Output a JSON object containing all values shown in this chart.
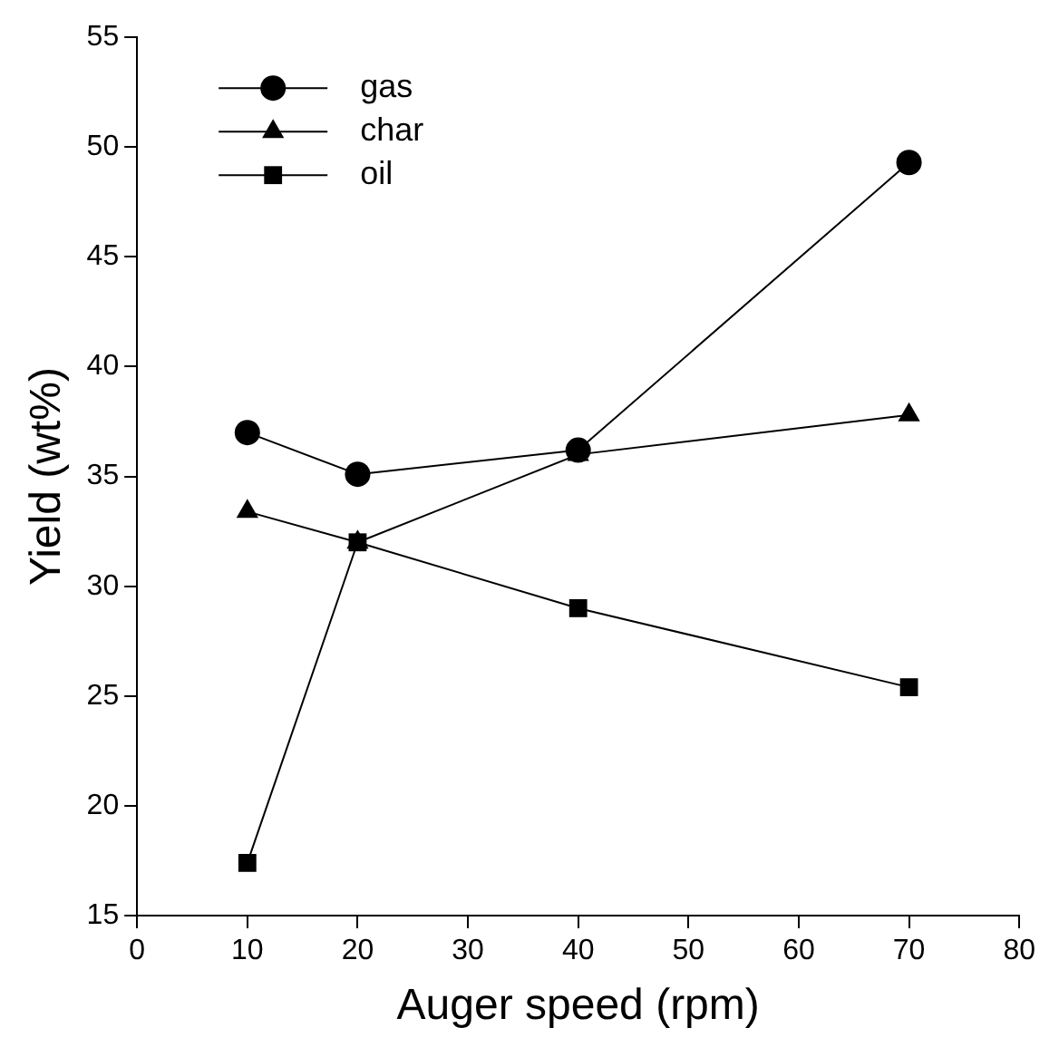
{
  "chart_data": {
    "type": "line",
    "xlabel": "Auger speed (rpm)",
    "ylabel": "Yield (wt%)",
    "x": [
      10,
      20,
      40,
      70
    ],
    "series": [
      {
        "name": "gas",
        "color": "#000000",
        "marker": "circle",
        "values": [
          37.0,
          35.1,
          36.2,
          49.3
        ]
      },
      {
        "name": "char",
        "color": "#000000",
        "marker": "triangle",
        "values": [
          33.4,
          32.0,
          36.0,
          37.8
        ]
      },
      {
        "name": "oil",
        "color": "#000000",
        "marker": "square",
        "values": [
          17.4,
          32.0,
          29.0,
          25.4
        ]
      }
    ],
    "xlim": [
      0,
      80
    ],
    "xticks": [
      0,
      10,
      20,
      30,
      40,
      50,
      60,
      70,
      80
    ],
    "ylim": [
      15,
      55
    ],
    "yticks": [
      15,
      20,
      25,
      30,
      35,
      40,
      45,
      50,
      55
    ],
    "grid": false,
    "legend": "top left",
    "line_style": "solid"
  }
}
